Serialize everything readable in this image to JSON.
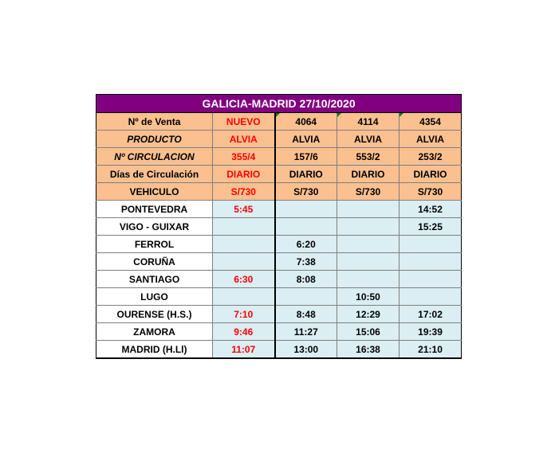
{
  "title": "GALICIA-MADRID 27/10/2020",
  "header_rows": [
    {
      "label": "Nº de Venta",
      "values": [
        "NUEVO",
        "4064",
        "4114",
        "4354"
      ]
    },
    {
      "label": "PRODUCTO",
      "values": [
        "ALVIA",
        "ALVIA",
        "ALVIA",
        "ALVIA"
      ]
    },
    {
      "label": "Nº CIRCULACION",
      "values": [
        "355/4",
        "157/6",
        "553/2",
        "253/2"
      ]
    },
    {
      "label": "Días de Circulación",
      "values": [
        "DIARIO",
        "DIARIO",
        "DIARIO",
        "DIARIO"
      ]
    },
    {
      "label": "VEHICULO",
      "values": [
        "S/730",
        "S/730",
        "S/730",
        "S/730"
      ]
    }
  ],
  "stations": [
    {
      "name": "PONTEVEDRA",
      "times": [
        "5:45",
        "",
        "",
        "14:52"
      ]
    },
    {
      "name": "VIGO - GUIXAR",
      "times": [
        "",
        "",
        "",
        "15:25"
      ]
    },
    {
      "name": "FERROL",
      "times": [
        "",
        "6:20",
        "",
        ""
      ]
    },
    {
      "name": "CORUÑA",
      "times": [
        "",
        "7:38",
        "",
        ""
      ]
    },
    {
      "name": "SANTIAGO",
      "times": [
        "6:30",
        "8:08",
        "",
        ""
      ]
    },
    {
      "name": "LUGO",
      "times": [
        "",
        "",
        "10:50",
        ""
      ]
    },
    {
      "name": "OURENSE (H.S.)",
      "times": [
        "7:10",
        "8:48",
        "12:29",
        "17:02"
      ]
    },
    {
      "name": "ZAMORA",
      "times": [
        "9:46",
        "11:27",
        "15:06",
        "19:39"
      ]
    },
    {
      "name": "MADRID (H.Ll)",
      "times": [
        "11:07",
        "13:00",
        "16:38",
        "21:10"
      ]
    }
  ],
  "colors": {
    "title_bg": "#800080",
    "header_bg": "#fac090",
    "time_cell_bg": "#daeef3",
    "new_service_text": "#ff0000",
    "comment_marker": "#008000"
  }
}
